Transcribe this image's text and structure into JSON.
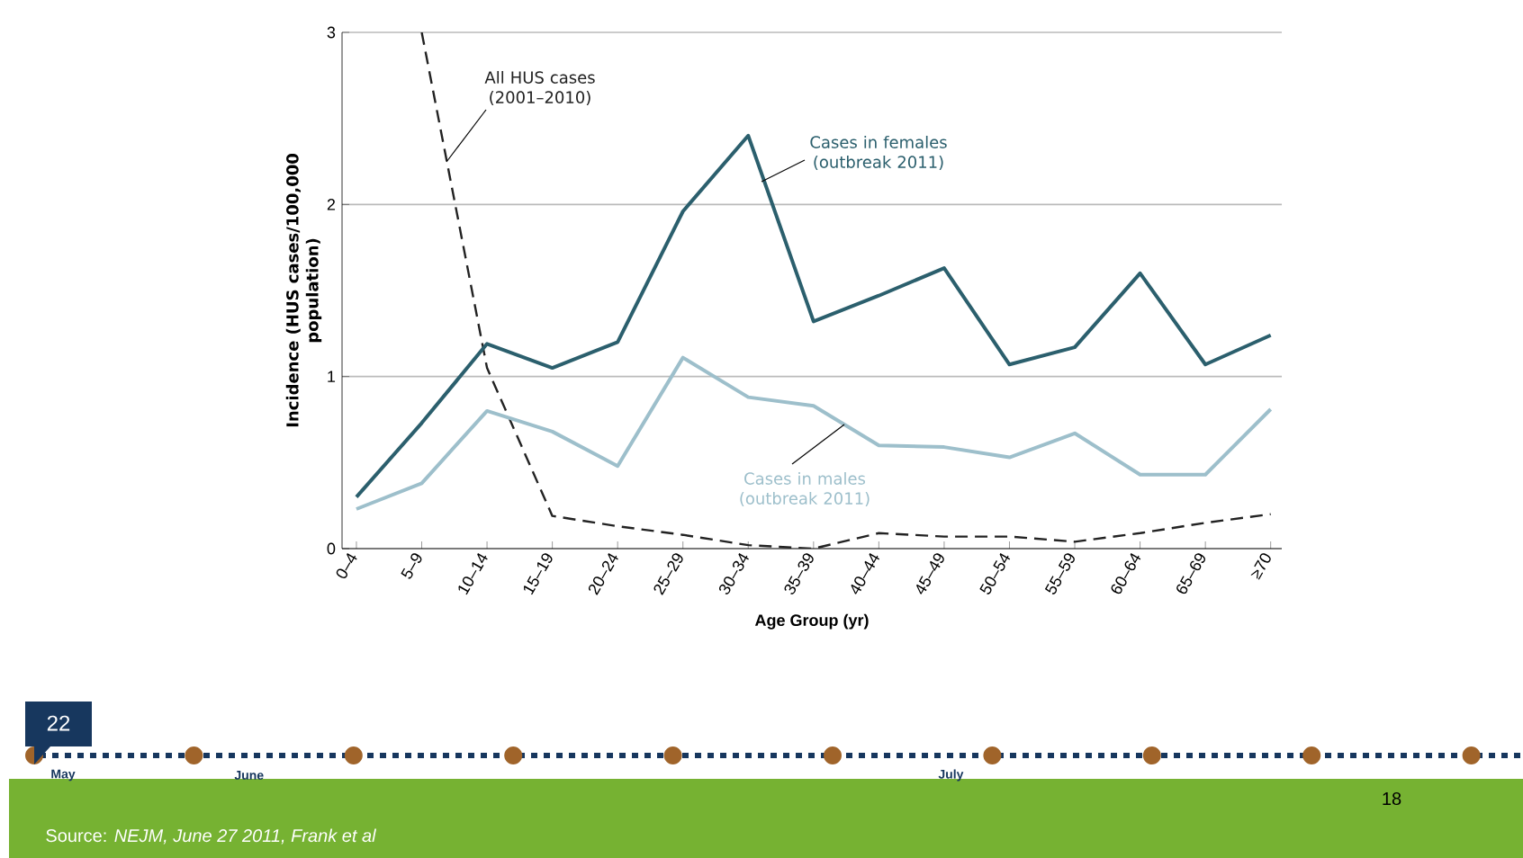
{
  "chart_data": {
    "type": "line",
    "xlabel": "Age Group (yr)",
    "ylabel": "Incidence (HUS cases/100,000 population)",
    "categories": [
      "0–4",
      "5–9",
      "10–14",
      "15–19",
      "20–24",
      "25–29",
      "30–34",
      "35–39",
      "40–44",
      "45–49",
      "50–54",
      "55–59",
      "60–64",
      "65–69",
      "≥70"
    ],
    "series": [
      {
        "name": "All HUS cases (2001–2010)",
        "color": "#222222",
        "line_style": "dashed",
        "values": [
          null,
          3,
          1.05,
          0.19,
          0.13,
          0.08,
          0.02,
          0,
          0.09,
          0.07,
          0.07,
          0.04,
          0.09,
          0.15,
          0.2
        ]
      },
      {
        "name": "Cases in females (outbreak 2011)",
        "color": "#2b5f6d",
        "line_style": "solid",
        "values": [
          0.3,
          0.73,
          1.19,
          1.05,
          1.2,
          1.96,
          2.4,
          1.32,
          1.47,
          1.63,
          1.07,
          1.17,
          1.6,
          1.07,
          1.24
        ]
      },
      {
        "name": "Cases in males (outbreak 2011)",
        "color": "#9dbfcb",
        "line_style": "solid",
        "values": [
          0.23,
          0.38,
          0.8,
          0.68,
          0.48,
          1.11,
          0.88,
          0.83,
          0.6,
          0.59,
          0.53,
          0.67,
          0.43,
          0.43,
          0.81
        ]
      }
    ],
    "ylim": [
      0,
      3
    ],
    "yticks": [
      0,
      1,
      2,
      3
    ],
    "grid": "y",
    "legend": false,
    "marker": "none",
    "annotations": [
      "22",
      "May",
      "June",
      "July",
      "18",
      "Source: *NEJM, June 27 2011, Frank et al*"
    ]
  }
}
